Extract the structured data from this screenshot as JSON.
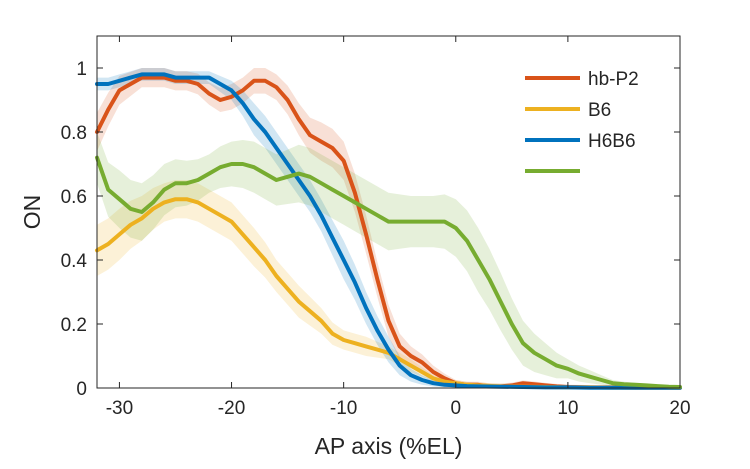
{
  "chart_data": {
    "type": "line",
    "xlabel": "AP axis (%EL)",
    "ylabel": "ON",
    "xlim": [
      -32,
      20
    ],
    "ylim": [
      0,
      1.1
    ],
    "xticks": [
      -30,
      -20,
      -10,
      0,
      10,
      20
    ],
    "yticks": [
      0,
      0.2,
      0.4,
      0.6,
      0.8,
      1
    ],
    "grid": false,
    "legend_position": "top-right",
    "series": [
      {
        "name": "hb-P2",
        "color": "#D95319",
        "points": [
          [
            -32,
            0.8
          ],
          [
            -31,
            0.87
          ],
          [
            -30,
            0.93
          ],
          [
            -29,
            0.95
          ],
          [
            -28,
            0.97
          ],
          [
            -27,
            0.97
          ],
          [
            -26,
            0.97
          ],
          [
            -25,
            0.96
          ],
          [
            -24,
            0.96
          ],
          [
            -23,
            0.95
          ],
          [
            -22,
            0.92
          ],
          [
            -21,
            0.9
          ],
          [
            -20,
            0.91
          ],
          [
            -19,
            0.93
          ],
          [
            -18,
            0.96
          ],
          [
            -17,
            0.96
          ],
          [
            -16,
            0.94
          ],
          [
            -15,
            0.9
          ],
          [
            -14,
            0.84
          ],
          [
            -13,
            0.79
          ],
          [
            -12,
            0.77
          ],
          [
            -11,
            0.75
          ],
          [
            -10,
            0.71
          ],
          [
            -9,
            0.61
          ],
          [
            -8,
            0.48
          ],
          [
            -7,
            0.34
          ],
          [
            -6,
            0.21
          ],
          [
            -5,
            0.13
          ],
          [
            -4,
            0.1
          ],
          [
            -3,
            0.08
          ],
          [
            -2,
            0.05
          ],
          [
            -1,
            0.03
          ],
          [
            0,
            0.015
          ],
          [
            1,
            0.01
          ],
          [
            2,
            0.01
          ],
          [
            3,
            0.005
          ],
          [
            4,
            0.005
          ],
          [
            5,
            0.008
          ],
          [
            6,
            0.015
          ],
          [
            7,
            0.012
          ],
          [
            8,
            0.008
          ],
          [
            9,
            0.005
          ],
          [
            10,
            0.003
          ],
          [
            12,
            0.002
          ],
          [
            14,
            0.002
          ],
          [
            16,
            0.001
          ],
          [
            18,
            0.001
          ],
          [
            20,
            0.001
          ]
        ],
        "band": [
          [
            -32,
            0.06
          ],
          [
            -28,
            0.03
          ],
          [
            -24,
            0.03
          ],
          [
            -20,
            0.04
          ],
          [
            -16,
            0.04
          ],
          [
            -12,
            0.06
          ],
          [
            -10,
            0.06
          ],
          [
            -8,
            0.06
          ],
          [
            -6,
            0.05
          ],
          [
            -4,
            0.03
          ],
          [
            -2,
            0.02
          ],
          [
            0,
            0.01
          ],
          [
            20,
            0.005
          ]
        ]
      },
      {
        "name": "B6",
        "color": "#EDB120",
        "points": [
          [
            -32,
            0.43
          ],
          [
            -31,
            0.45
          ],
          [
            -30,
            0.48
          ],
          [
            -29,
            0.51
          ],
          [
            -28,
            0.53
          ],
          [
            -27,
            0.56
          ],
          [
            -26,
            0.58
          ],
          [
            -25,
            0.59
          ],
          [
            -24,
            0.59
          ],
          [
            -23,
            0.58
          ],
          [
            -22,
            0.56
          ],
          [
            -21,
            0.54
          ],
          [
            -20,
            0.52
          ],
          [
            -19,
            0.48
          ],
          [
            -18,
            0.44
          ],
          [
            -17,
            0.4
          ],
          [
            -16,
            0.35
          ],
          [
            -15,
            0.31
          ],
          [
            -14,
            0.27
          ],
          [
            -13,
            0.24
          ],
          [
            -12,
            0.21
          ],
          [
            -11,
            0.17
          ],
          [
            -10,
            0.15
          ],
          [
            -9,
            0.14
          ],
          [
            -8,
            0.13
          ],
          [
            -7,
            0.12
          ],
          [
            -6,
            0.11
          ],
          [
            -5,
            0.09
          ],
          [
            -4,
            0.07
          ],
          [
            -3,
            0.05
          ],
          [
            -2,
            0.03
          ],
          [
            -1,
            0.02
          ],
          [
            0,
            0.015
          ],
          [
            1,
            0.01
          ],
          [
            2,
            0.008
          ],
          [
            4,
            0.005
          ],
          [
            6,
            0.004
          ],
          [
            8,
            0.003
          ],
          [
            10,
            0.002
          ],
          [
            12,
            0.002
          ],
          [
            14,
            0.001
          ],
          [
            16,
            0.001
          ],
          [
            18,
            0.001
          ],
          [
            20,
            0.001
          ]
        ],
        "band": [
          [
            -32,
            0.08
          ],
          [
            -30,
            0.08
          ],
          [
            -28,
            0.07
          ],
          [
            -26,
            0.06
          ],
          [
            -24,
            0.06
          ],
          [
            -22,
            0.06
          ],
          [
            -20,
            0.06
          ],
          [
            -18,
            0.06
          ],
          [
            -16,
            0.05
          ],
          [
            -14,
            0.05
          ],
          [
            -12,
            0.04
          ],
          [
            -10,
            0.03
          ],
          [
            -8,
            0.03
          ],
          [
            -6,
            0.02
          ],
          [
            -4,
            0.02
          ],
          [
            -2,
            0.01
          ],
          [
            0,
            0.01
          ],
          [
            20,
            0.003
          ]
        ]
      },
      {
        "name": "H6B6",
        "color": "#0072BD",
        "points": [
          [
            -32,
            0.95
          ],
          [
            -31,
            0.95
          ],
          [
            -30,
            0.96
          ],
          [
            -29,
            0.97
          ],
          [
            -28,
            0.98
          ],
          [
            -27,
            0.98
          ],
          [
            -26,
            0.98
          ],
          [
            -25,
            0.97
          ],
          [
            -24,
            0.97
          ],
          [
            -23,
            0.97
          ],
          [
            -22,
            0.97
          ],
          [
            -21,
            0.95
          ],
          [
            -20,
            0.93
          ],
          [
            -19,
            0.89
          ],
          [
            -18,
            0.84
          ],
          [
            -17,
            0.8
          ],
          [
            -16,
            0.75
          ],
          [
            -15,
            0.7
          ],
          [
            -14,
            0.65
          ],
          [
            -13,
            0.6
          ],
          [
            -12,
            0.54
          ],
          [
            -11,
            0.47
          ],
          [
            -10,
            0.4
          ],
          [
            -9,
            0.33
          ],
          [
            -8,
            0.25
          ],
          [
            -7,
            0.18
          ],
          [
            -6,
            0.12
          ],
          [
            -5,
            0.07
          ],
          [
            -4,
            0.04
          ],
          [
            -3,
            0.025
          ],
          [
            -2,
            0.015
          ],
          [
            -1,
            0.01
          ],
          [
            0,
            0.008
          ],
          [
            1,
            0.006
          ],
          [
            2,
            0.005
          ],
          [
            4,
            0.004
          ],
          [
            6,
            0.003
          ],
          [
            8,
            0.002
          ],
          [
            10,
            0.002
          ],
          [
            12,
            0.001
          ],
          [
            14,
            0.001
          ],
          [
            16,
            0.001
          ],
          [
            18,
            0.001
          ],
          [
            20,
            0.001
          ]
        ],
        "band": [
          [
            -32,
            0.02
          ],
          [
            -28,
            0.02
          ],
          [
            -24,
            0.02
          ],
          [
            -22,
            0.02
          ],
          [
            -20,
            0.03
          ],
          [
            -18,
            0.05
          ],
          [
            -16,
            0.05
          ],
          [
            -14,
            0.05
          ],
          [
            -12,
            0.05
          ],
          [
            -10,
            0.06
          ],
          [
            -8,
            0.05
          ],
          [
            -6,
            0.04
          ],
          [
            -4,
            0.02
          ],
          [
            -2,
            0.01
          ],
          [
            0,
            0.005
          ],
          [
            20,
            0.002
          ]
        ]
      },
      {
        "name": "",
        "color": "#77AC30",
        "points": [
          [
            -32,
            0.72
          ],
          [
            -31,
            0.62
          ],
          [
            -30,
            0.59
          ],
          [
            -29,
            0.56
          ],
          [
            -28,
            0.55
          ],
          [
            -27,
            0.58
          ],
          [
            -26,
            0.62
          ],
          [
            -25,
            0.64
          ],
          [
            -24,
            0.64
          ],
          [
            -23,
            0.65
          ],
          [
            -22,
            0.67
          ],
          [
            -21,
            0.69
          ],
          [
            -20,
            0.7
          ],
          [
            -19,
            0.7
          ],
          [
            -18,
            0.69
          ],
          [
            -17,
            0.67
          ],
          [
            -16,
            0.65
          ],
          [
            -15,
            0.66
          ],
          [
            -14,
            0.67
          ],
          [
            -13,
            0.66
          ],
          [
            -12,
            0.64
          ],
          [
            -11,
            0.62
          ],
          [
            -10,
            0.6
          ],
          [
            -9,
            0.58
          ],
          [
            -8,
            0.56
          ],
          [
            -7,
            0.54
          ],
          [
            -6,
            0.52
          ],
          [
            -5,
            0.52
          ],
          [
            -4,
            0.52
          ],
          [
            -3,
            0.52
          ],
          [
            -2,
            0.52
          ],
          [
            -1,
            0.52
          ],
          [
            0,
            0.5
          ],
          [
            1,
            0.46
          ],
          [
            2,
            0.4
          ],
          [
            3,
            0.34
          ],
          [
            4,
            0.27
          ],
          [
            5,
            0.2
          ],
          [
            6,
            0.14
          ],
          [
            7,
            0.11
          ],
          [
            8,
            0.09
          ],
          [
            9,
            0.07
          ],
          [
            10,
            0.06
          ],
          [
            11,
            0.045
          ],
          [
            12,
            0.035
          ],
          [
            13,
            0.025
          ],
          [
            14,
            0.015
          ],
          [
            15,
            0.012
          ],
          [
            16,
            0.01
          ],
          [
            17,
            0.008
          ],
          [
            18,
            0.006
          ],
          [
            19,
            0.004
          ],
          [
            20,
            0.003
          ]
        ],
        "band": [
          [
            -32,
            0.08
          ],
          [
            -30,
            0.09
          ],
          [
            -28,
            0.09
          ],
          [
            -26,
            0.08
          ],
          [
            -24,
            0.07
          ],
          [
            -22,
            0.06
          ],
          [
            -20,
            0.07
          ],
          [
            -18,
            0.08
          ],
          [
            -16,
            0.08
          ],
          [
            -14,
            0.09
          ],
          [
            -12,
            0.09
          ],
          [
            -10,
            0.09
          ],
          [
            -8,
            0.09
          ],
          [
            -6,
            0.09
          ],
          [
            -4,
            0.08
          ],
          [
            -2,
            0.08
          ],
          [
            0,
            0.09
          ],
          [
            2,
            0.1
          ],
          [
            4,
            0.09
          ],
          [
            6,
            0.07
          ],
          [
            8,
            0.05
          ],
          [
            10,
            0.03
          ],
          [
            12,
            0.02
          ],
          [
            14,
            0.01
          ],
          [
            16,
            0.006
          ],
          [
            20,
            0.003
          ]
        ]
      }
    ]
  }
}
